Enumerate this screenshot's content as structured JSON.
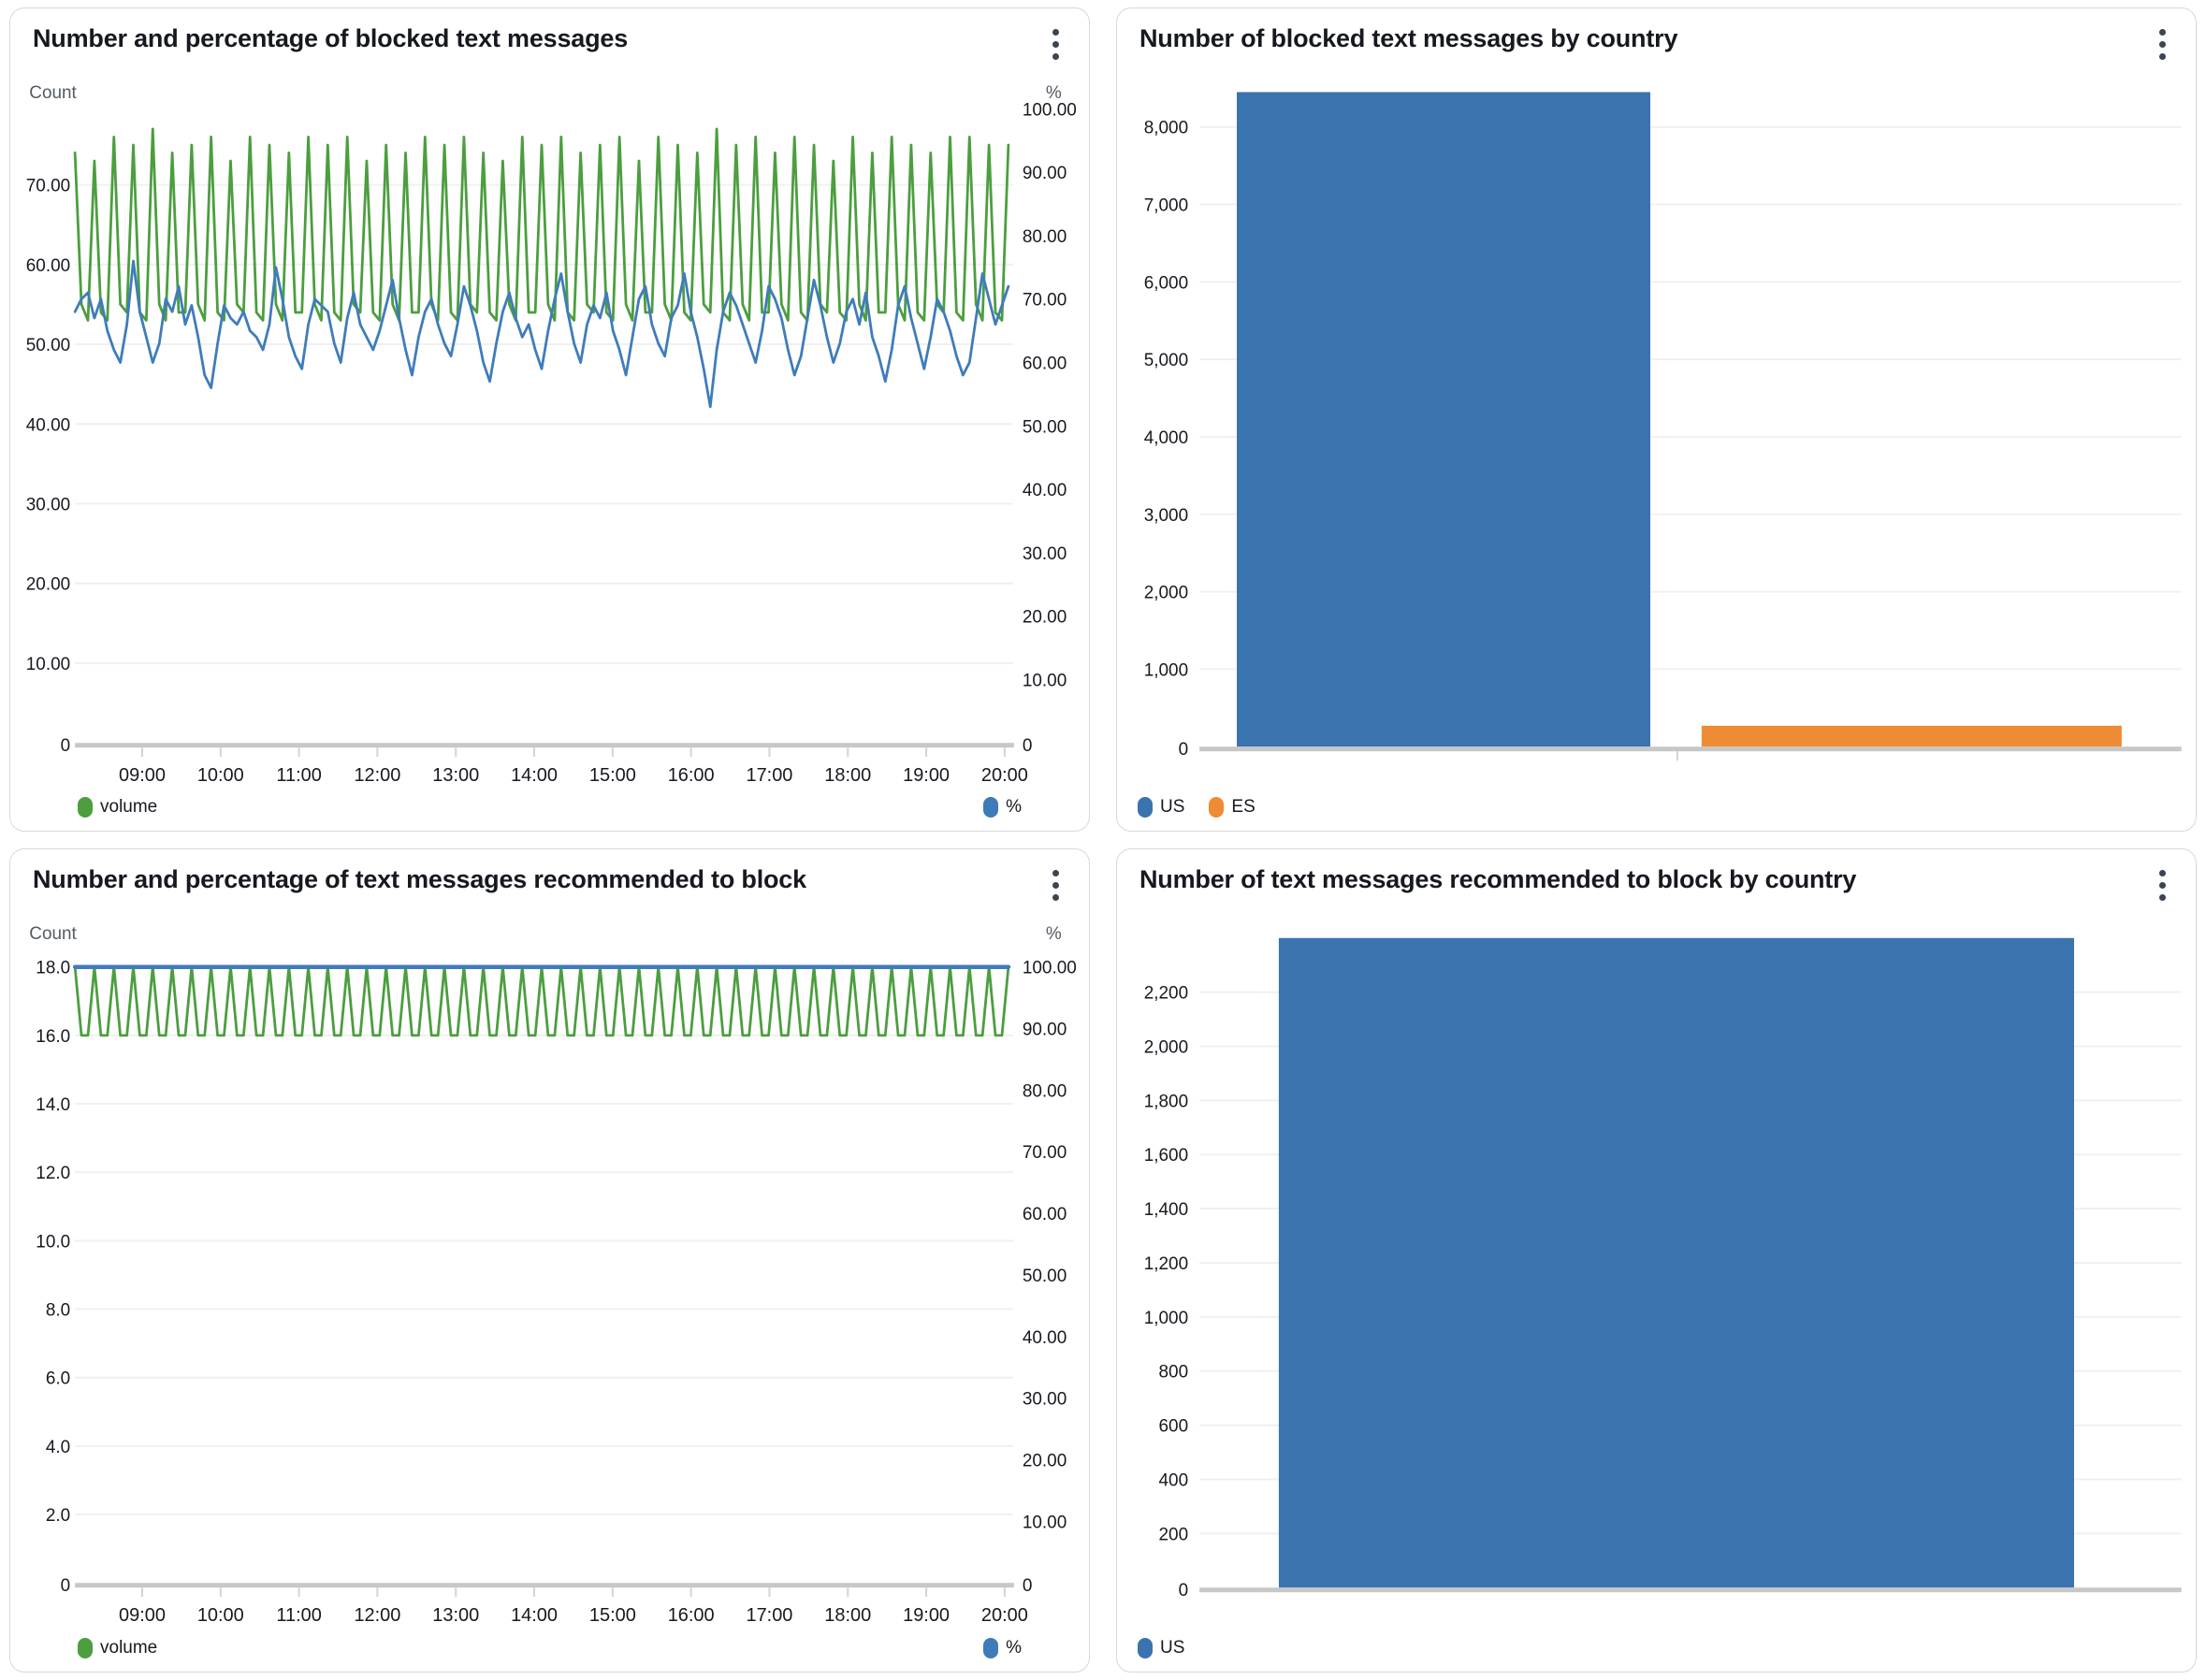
{
  "chart_data": [
    {
      "type": "line",
      "title": "Number and percentage of blocked text messages",
      "left_axis": {
        "label": "Count",
        "tick_labels": [
          "70.00",
          "60.00",
          "50.00",
          "40.00",
          "30.00",
          "20.00",
          "10.00",
          "0"
        ],
        "tick_values": [
          70,
          60,
          50,
          40,
          30,
          20,
          10,
          0
        ],
        "range": [
          0,
          83
        ]
      },
      "right_axis": {
        "label": "%",
        "tick_labels": [
          "100.00",
          "90.00",
          "80.00",
          "70.00",
          "60.00",
          "50.00",
          "40.00",
          "30.00",
          "20.00",
          "10.00",
          "0"
        ],
        "tick_values": [
          100,
          90,
          80,
          70,
          60,
          50,
          40,
          30,
          20,
          10,
          0
        ],
        "range": [
          0,
          104
        ]
      },
      "x_axis": {
        "tick_labels": [
          "09:00",
          "10:00",
          "11:00",
          "12:00",
          "13:00",
          "14:00",
          "15:00",
          "16:00",
          "17:00",
          "18:00",
          "19:00",
          "20:00"
        ]
      },
      "series": [
        {
          "name": "volume",
          "axis": "left",
          "color": "#4C9E3F",
          "values": [
            74,
            55,
            53,
            73,
            54,
            53,
            76,
            55,
            54,
            75,
            54,
            53,
            77,
            55,
            53,
            74,
            54,
            54,
            75,
            55,
            53,
            76,
            54,
            53,
            73,
            55,
            54,
            76,
            54,
            53,
            75,
            55,
            53,
            74,
            54,
            54,
            76,
            55,
            53,
            75,
            54,
            53,
            76,
            55,
            54,
            73,
            54,
            53,
            75,
            55,
            53,
            74,
            54,
            54,
            76,
            55,
            53,
            75,
            54,
            53,
            76,
            55,
            54,
            74,
            54,
            53,
            73,
            55,
            53,
            76,
            54,
            54,
            75,
            55,
            53,
            76,
            54,
            53,
            74,
            55,
            54,
            75,
            54,
            53,
            76,
            55,
            53,
            73,
            54,
            54,
            76,
            55,
            53,
            75,
            54,
            53,
            74,
            55,
            54,
            77,
            54,
            53,
            75,
            55,
            53,
            76,
            54,
            54,
            74,
            55,
            53,
            76,
            54,
            53,
            75,
            55,
            54,
            73,
            54,
            53,
            76,
            55,
            53,
            74,
            54,
            54,
            76,
            55,
            53,
            75,
            54,
            53,
            74,
            55,
            54,
            76,
            54,
            53,
            76,
            55,
            53,
            75,
            54,
            53,
            75
          ]
        },
        {
          "name": "%",
          "axis": "right",
          "color": "#3F7CBA",
          "values": [
            68,
            70,
            71,
            67,
            70,
            65,
            62,
            60,
            66,
            76,
            68,
            64,
            60,
            63,
            70,
            68,
            72,
            66,
            69,
            64,
            58,
            56,
            63,
            69,
            67,
            66,
            68,
            65,
            64,
            62,
            66,
            75,
            70,
            64,
            61,
            59,
            66,
            70,
            69,
            68,
            63,
            60,
            67,
            71,
            66,
            64,
            62,
            65,
            69,
            73,
            67,
            62,
            58,
            64,
            68,
            70,
            66,
            63,
            61,
            66,
            72,
            69,
            65,
            60,
            57,
            63,
            68,
            71,
            67,
            64,
            66,
            62,
            59,
            65,
            70,
            74,
            68,
            63,
            60,
            66,
            69,
            67,
            71,
            65,
            62,
            58,
            64,
            70,
            72,
            66,
            63,
            61,
            67,
            69,
            74,
            68,
            64,
            59,
            53,
            62,
            68,
            71,
            69,
            66,
            63,
            60,
            65,
            72,
            70,
            67,
            62,
            58,
            61,
            67,
            73,
            69,
            64,
            60,
            63,
            68,
            70,
            66,
            71,
            64,
            61,
            57,
            62,
            69,
            72,
            67,
            63,
            59,
            64,
            70,
            68,
            65,
            61,
            58,
            60,
            67,
            74,
            70,
            66,
            69,
            72
          ]
        }
      ]
    },
    {
      "type": "bar",
      "title": "Number of blocked text messages by country",
      "categories": [
        "US",
        "ES"
      ],
      "values": [
        8450,
        270
      ],
      "colors": [
        "#3B73AF",
        "#EE8B35"
      ],
      "y_axis": {
        "tick_labels": [
          "8,000",
          "7,000",
          "6,000",
          "5,000",
          "4,000",
          "3,000",
          "2,000",
          "1,000",
          "0"
        ],
        "tick_values": [
          8000,
          7000,
          6000,
          5000,
          4000,
          3000,
          2000,
          1000,
          0
        ],
        "range": [
          0,
          8450
        ]
      }
    },
    {
      "type": "line",
      "title": "Number and percentage of text messages recommended to block",
      "left_axis": {
        "label": "Count",
        "tick_labels": [
          "18.0",
          "16.0",
          "14.0",
          "12.0",
          "10.0",
          "8.0",
          "6.0",
          "4.0",
          "2.0",
          "0"
        ],
        "tick_values": [
          18,
          16,
          14,
          12,
          10,
          8,
          6,
          4,
          2,
          0
        ],
        "range": [
          0,
          18.6
        ]
      },
      "right_axis": {
        "label": "%",
        "tick_labels": [
          "100.00",
          "90.00",
          "80.00",
          "70.00",
          "60.00",
          "50.00",
          "40.00",
          "30.00",
          "20.00",
          "10.00",
          "0"
        ],
        "tick_values": [
          100,
          90,
          80,
          70,
          60,
          50,
          40,
          30,
          20,
          10,
          0
        ],
        "range": [
          0,
          103.3
        ]
      },
      "x_axis": {
        "tick_labels": [
          "09:00",
          "10:00",
          "11:00",
          "12:00",
          "13:00",
          "14:00",
          "15:00",
          "16:00",
          "17:00",
          "18:00",
          "19:00",
          "20:00"
        ]
      },
      "series": [
        {
          "name": "volume",
          "axis": "left",
          "color": "#4C9E3F",
          "values": [
            18,
            16,
            16,
            18,
            16,
            16,
            18,
            16,
            16,
            18,
            16,
            16,
            18,
            16,
            16,
            18,
            16,
            16,
            18,
            16,
            16,
            18,
            16,
            16,
            18,
            16,
            16,
            18,
            16,
            16,
            18,
            16,
            16,
            18,
            16,
            16,
            18,
            16,
            16,
            18,
            16,
            16,
            18,
            16,
            16,
            18,
            16,
            16,
            18,
            16,
            16,
            18,
            16,
            16,
            18,
            16,
            16,
            18,
            16,
            16,
            18,
            16,
            16,
            18,
            16,
            16,
            18,
            16,
            16,
            18,
            16,
            16,
            18,
            16,
            16,
            18,
            16,
            16,
            18,
            16,
            16,
            18,
            16,
            16,
            18,
            16,
            16,
            18,
            16,
            16,
            18,
            16,
            16,
            18,
            16,
            16,
            18,
            16,
            16,
            18,
            16,
            16,
            18,
            16,
            16,
            18,
            16,
            16,
            18,
            16,
            16,
            18,
            16,
            16,
            18,
            16,
            16,
            18,
            16,
            16,
            18,
            16,
            16,
            18,
            16,
            16,
            18,
            16,
            16,
            18,
            16,
            16,
            18,
            16,
            16,
            18,
            16,
            16,
            18,
            16,
            16,
            18,
            16,
            16,
            18
          ]
        },
        {
          "name": "%",
          "axis": "right",
          "color": "#3F7CBA",
          "values": [
            100,
            100,
            100,
            100,
            100,
            100,
            100,
            100,
            100,
            100,
            100,
            100,
            100,
            100,
            100,
            100,
            100,
            100,
            100,
            100,
            100,
            100,
            100,
            100,
            100,
            100,
            100,
            100,
            100,
            100,
            100,
            100,
            100,
            100,
            100,
            100,
            100,
            100,
            100,
            100,
            100,
            100,
            100,
            100,
            100,
            100,
            100,
            100,
            100,
            100,
            100,
            100,
            100,
            100,
            100,
            100,
            100,
            100,
            100,
            100,
            100,
            100,
            100,
            100,
            100,
            100,
            100,
            100,
            100,
            100,
            100,
            100,
            100,
            100,
            100,
            100,
            100,
            100,
            100,
            100,
            100,
            100,
            100,
            100,
            100,
            100,
            100,
            100,
            100,
            100,
            100,
            100,
            100,
            100,
            100,
            100,
            100,
            100,
            100,
            100,
            100,
            100,
            100,
            100,
            100,
            100,
            100,
            100,
            100,
            100,
            100,
            100,
            100,
            100,
            100,
            100,
            100,
            100,
            100,
            100,
            100,
            100,
            100,
            100,
            100,
            100,
            100,
            100,
            100,
            100,
            100,
            100,
            100,
            100,
            100,
            100,
            100,
            100,
            100,
            100,
            100,
            100,
            100,
            100,
            100
          ]
        }
      ]
    },
    {
      "type": "bar",
      "title": "Number of text messages recommended to block by country",
      "categories": [
        "US"
      ],
      "values": [
        2400
      ],
      "colors": [
        "#3B73AF"
      ],
      "y_axis": {
        "tick_labels": [
          "2,200",
          "2,000",
          "1,800",
          "1,600",
          "1,400",
          "1,200",
          "1,000",
          "800",
          "600",
          "400",
          "200",
          "0"
        ],
        "tick_values": [
          2200,
          2000,
          1800,
          1600,
          1400,
          1200,
          1000,
          800,
          600,
          400,
          200,
          0
        ],
        "range": [
          0,
          2400
        ]
      }
    }
  ],
  "legend_swatch_colors": {
    "volume": "#4C9E3F",
    "percent": "#3E7CB9",
    "us": "#3B73AF",
    "es": "#EE8B35"
  }
}
